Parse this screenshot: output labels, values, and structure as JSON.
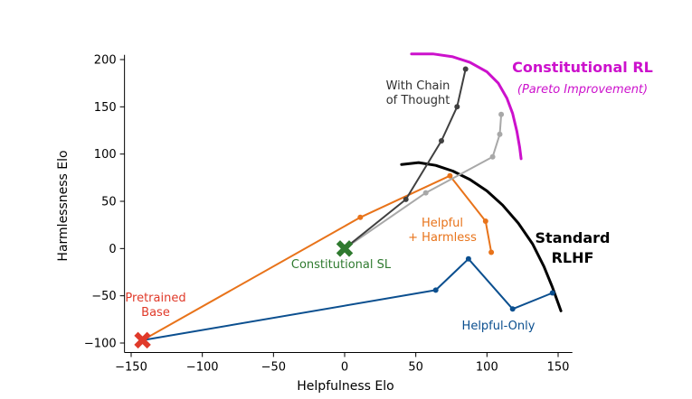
{
  "chart_data": {
    "type": "line",
    "title": "",
    "xlabel": "Helpfulness Elo",
    "ylabel": "Harmlessness Elo",
    "xlim": [
      -155,
      160
    ],
    "ylim": [
      -110,
      205
    ],
    "xticks": [
      -150,
      -100,
      -50,
      0,
      50,
      100,
      150
    ],
    "yticks": [
      -100,
      -50,
      0,
      50,
      100,
      150,
      200
    ],
    "grid": false,
    "series": [
      {
        "name": "Helpful-Only",
        "color": "#0b4f8f",
        "points": [
          [
            -142,
            -97
          ],
          [
            64,
            -44
          ],
          [
            87,
            -11
          ],
          [
            118,
            -64
          ],
          [
            146,
            -47
          ]
        ]
      },
      {
        "name": "Helpful + Harmless",
        "color": "#e8731a",
        "points": [
          [
            -142,
            -97
          ],
          [
            11,
            33
          ],
          [
            74,
            77
          ],
          [
            99,
            29
          ],
          [
            103,
            -4
          ]
        ]
      },
      {
        "name": "",
        "color": "#a8a8a8",
        "points": [
          [
            0,
            0
          ],
          [
            57,
            59
          ],
          [
            104,
            97
          ],
          [
            109,
            121
          ],
          [
            110,
            142
          ]
        ]
      },
      {
        "name": "With Chain of Thought",
        "color": "#404040",
        "points": [
          [
            0,
            0
          ],
          [
            43,
            52
          ],
          [
            68,
            114
          ],
          [
            79,
            150
          ],
          [
            85,
            190
          ]
        ]
      }
    ],
    "markers": [
      {
        "name": "Pretrained Base",
        "x": -142,
        "y": -97,
        "color": "#e03a2a"
      },
      {
        "name": "Constitutional SL",
        "x": 0,
        "y": 0,
        "color": "#2f7a2f"
      }
    ],
    "frontiers": [
      {
        "name": "Standard RLHF",
        "color": "#000000",
        "points": [
          [
            40,
            89
          ],
          [
            52,
            91
          ],
          [
            64,
            88
          ],
          [
            76,
            82
          ],
          [
            88,
            73
          ],
          [
            100,
            61
          ],
          [
            111,
            46
          ],
          [
            122,
            27
          ],
          [
            132,
            5
          ],
          [
            140,
            -19
          ],
          [
            146,
            -41
          ],
          [
            152,
            -66
          ]
        ]
      },
      {
        "name": "Constitutional RL",
        "subtitle": "(Pareto Improvement)",
        "color": "#cc11cc",
        "points": [
          [
            47,
            206
          ],
          [
            62,
            206
          ],
          [
            76,
            203
          ],
          [
            88,
            197
          ],
          [
            100,
            187
          ],
          [
            108,
            175
          ],
          [
            114,
            159
          ],
          [
            118,
            143
          ],
          [
            121,
            124
          ],
          [
            123,
            107
          ],
          [
            124,
            95
          ]
        ]
      }
    ],
    "annotations": [
      {
        "text": "Pretrained Base",
        "lines": [
          "Pretrained",
          "Base"
        ],
        "color": "#e03a2a"
      },
      {
        "text": "Constitutional SL",
        "lines": [
          "Constitutional SL"
        ],
        "color": "#2f7a2f"
      },
      {
        "text": "Helpful + Harmless",
        "lines": [
          "Helpful",
          "+ Harmless"
        ],
        "color": "#e8731a"
      },
      {
        "text": "Helpful-Only",
        "lines": [
          "Helpful-Only"
        ],
        "color": "#0b4f8f"
      },
      {
        "text": "With Chain of Thought",
        "lines": [
          "With Chain",
          "of Thought"
        ],
        "color": "#303030"
      },
      {
        "text": "Standard RLHF",
        "lines": [
          "Standard",
          "RLHF"
        ],
        "color": "#000000"
      },
      {
        "text": "Constitutional RL",
        "lines": [
          "Constitutional RL"
        ],
        "color": "#cc11cc"
      },
      {
        "text": "(Pareto Improvement)",
        "lines": [
          "(Pareto Improvement)"
        ],
        "color": "#cc11cc"
      }
    ]
  }
}
